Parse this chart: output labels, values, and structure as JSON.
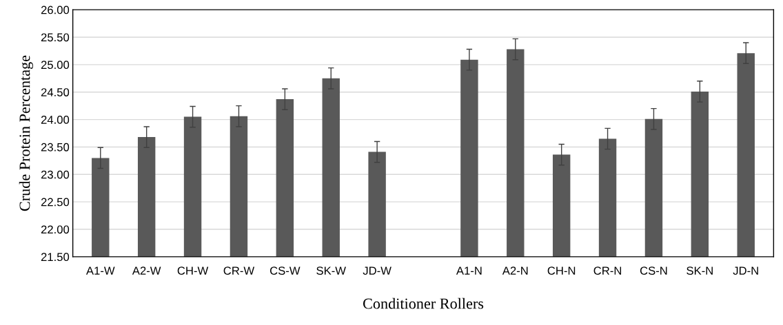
{
  "chart_data": {
    "type": "bar",
    "xlabel": "Conditioner Rollers",
    "ylabel": "Crude Protein Percentage",
    "categories": [
      "A1-W",
      "A2-W",
      "CH-W",
      "CR-W",
      "CS-W",
      "SK-W",
      "JD-W",
      null,
      "A1-N",
      "A2-N",
      "CH-N",
      "CR-N",
      "CS-N",
      "SK-N",
      "JD-N"
    ],
    "values": [
      23.3,
      23.68,
      24.05,
      24.06,
      24.37,
      24.75,
      23.41,
      null,
      25.09,
      25.28,
      23.36,
      23.65,
      24.01,
      24.51,
      25.21
    ],
    "errors": [
      0.19,
      0.19,
      0.19,
      0.19,
      0.19,
      0.19,
      0.19,
      null,
      0.19,
      0.19,
      0.19,
      0.19,
      0.19,
      0.19,
      0.19
    ],
    "color": "#595959",
    "ylim": [
      21.5,
      26
    ],
    "yticks": [
      {
        "value": 21.5,
        "label": "21.50"
      },
      {
        "value": 22,
        "label": "22.00"
      },
      {
        "value": 22.5,
        "label": "22.50"
      },
      {
        "value": 23,
        "label": "23.00"
      },
      {
        "value": 23.5,
        "label": "23.50"
      },
      {
        "value": 24,
        "label": "24.00"
      },
      {
        "value": 24.5,
        "label": "24.50"
      },
      {
        "value": 25,
        "label": "25.00"
      },
      {
        "value": 25.5,
        "label": "25.50"
      },
      {
        "value": 26,
        "label": "26.00"
      }
    ],
    "grid": "y",
    "legend": false
  }
}
